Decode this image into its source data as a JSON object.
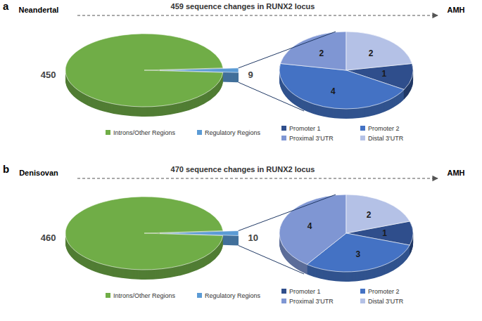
{
  "chart_data": [
    {
      "type": "pie",
      "title": "459 sequence changes in RUNX2 locus",
      "annotations": [
        "a",
        "Neandertal",
        "AMH"
      ],
      "categories": [
        "Introns/Other Regions",
        "Regulatory Regions"
      ],
      "values": [
        450,
        9
      ],
      "colors": [
        "#70ad47",
        "#5b9bd5"
      ],
      "data_labels": true,
      "legend": "bottom"
    },
    {
      "type": "pie",
      "categories": [
        "Promoter 1",
        "Promoter 2",
        "Proximal 3'UTR",
        "Distal 3'UTR"
      ],
      "values": [
        1,
        4,
        2,
        2
      ],
      "colors": [
        "#2f4e8c",
        "#4472c4",
        "#7f96d3",
        "#b4c1e6"
      ],
      "data_labels": true,
      "legend": "bottom"
    },
    {
      "type": "pie",
      "title": "470 sequence changes in RUNX2 locus",
      "annotations": [
        "b",
        "Denisovan",
        "AMH"
      ],
      "categories": [
        "Introns/Other Regions",
        "Regulatory Regions"
      ],
      "values": [
        460,
        10
      ],
      "colors": [
        "#70ad47",
        "#5b9bd5"
      ],
      "data_labels": true,
      "legend": "bottom"
    },
    {
      "type": "pie",
      "categories": [
        "Promoter 1",
        "Promoter 2",
        "Proximal 3'UTR",
        "Distal 3'UTR"
      ],
      "values": [
        1,
        3,
        4,
        2
      ],
      "colors": [
        "#2f4e8c",
        "#4472c4",
        "#7f96d3",
        "#b4c1e6"
      ],
      "data_labels": true,
      "legend": "bottom"
    }
  ]
}
